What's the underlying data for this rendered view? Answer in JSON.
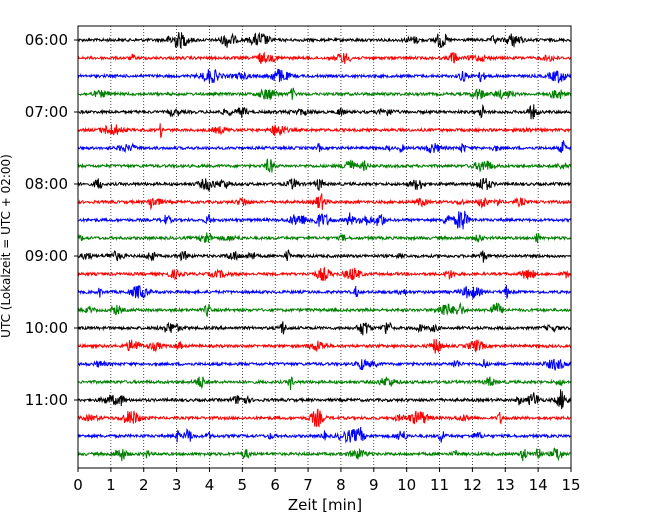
{
  "chart_data": {
    "type": "line",
    "title": "",
    "xlabel": "Zeit  [min]",
    "ylabel": "UTC (Lokalzeit = UTC + 02:00)",
    "xlim": [
      0,
      15
    ],
    "xticks": [
      0,
      1,
      2,
      3,
      4,
      5,
      6,
      7,
      8,
      9,
      10,
      11,
      12,
      13,
      14,
      15
    ],
    "xtick_labels": [
      "0",
      "1",
      "2",
      "3",
      "4",
      "5",
      "6",
      "7",
      "8",
      "9",
      "10",
      "11",
      "12",
      "13",
      "14",
      "15"
    ],
    "yticks": [
      "06:00",
      "07:00",
      "08:00",
      "09:00",
      "10:00",
      "11:00"
    ],
    "grid": "vertical dotted at each minute",
    "trace_colors": [
      "#000000",
      "#ff0000",
      "#0000ff",
      "#008000"
    ],
    "traces": [
      {
        "start": "06:00",
        "color": "#000000"
      },
      {
        "start": "06:15",
        "color": "#ff0000"
      },
      {
        "start": "06:30",
        "color": "#0000ff"
      },
      {
        "start": "06:45",
        "color": "#008000"
      },
      {
        "start": "07:00",
        "color": "#000000"
      },
      {
        "start": "07:15",
        "color": "#ff0000"
      },
      {
        "start": "07:30",
        "color": "#0000ff"
      },
      {
        "start": "07:45",
        "color": "#008000"
      },
      {
        "start": "08:00",
        "color": "#000000"
      },
      {
        "start": "08:15",
        "color": "#ff0000"
      },
      {
        "start": "08:30",
        "color": "#0000ff"
      },
      {
        "start": "08:45",
        "color": "#008000"
      },
      {
        "start": "09:00",
        "color": "#000000"
      },
      {
        "start": "09:15",
        "color": "#ff0000"
      },
      {
        "start": "09:30",
        "color": "#0000ff"
      },
      {
        "start": "09:45",
        "color": "#008000"
      },
      {
        "start": "10:00",
        "color": "#000000"
      },
      {
        "start": "10:15",
        "color": "#ff0000"
      },
      {
        "start": "10:30",
        "color": "#0000ff"
      },
      {
        "start": "10:45",
        "color": "#008000"
      },
      {
        "start": "11:00",
        "color": "#000000"
      },
      {
        "start": "11:15",
        "color": "#ff0000"
      },
      {
        "start": "11:30",
        "color": "#0000ff"
      },
      {
        "start": "11:45",
        "color": "#008000"
      }
    ]
  }
}
